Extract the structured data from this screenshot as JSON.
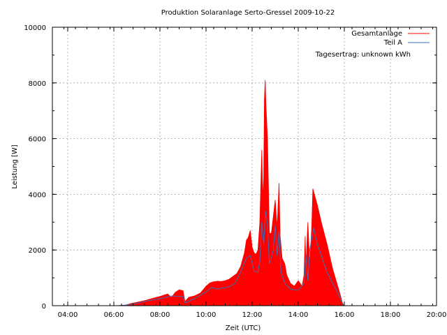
{
  "chart_data": {
    "type": "area",
    "title": "Produktion Solaranlage Serto-Gressel 2009-10-22",
    "xlabel": "Zeit (UTC)",
    "ylabel": "Leistung [W]",
    "xlim": [
      "03:20",
      "20:00"
    ],
    "ylim": [
      0,
      10000
    ],
    "x_ticks": [
      "04:00",
      "06:00",
      "08:00",
      "10:00",
      "12:00",
      "14:00",
      "16:00",
      "18:00",
      "20:00"
    ],
    "y_ticks": [
      "0",
      "2000",
      "4000",
      "6000",
      "8000",
      "10000"
    ],
    "grid": true,
    "legend_position": "top-right",
    "annotation": "Tagesertrag: unknown kWh",
    "series": [
      {
        "name": "Gesamtanlage",
        "style": "filled-area",
        "color": "#ff0000",
        "points": [
          [
            "06:10",
            0
          ],
          [
            "06:30",
            20
          ],
          [
            "06:45",
            80
          ],
          [
            "07:00",
            120
          ],
          [
            "07:20",
            180
          ],
          [
            "07:40",
            260
          ],
          [
            "08:00",
            330
          ],
          [
            "08:20",
            420
          ],
          [
            "08:30",
            300
          ],
          [
            "08:40",
            480
          ],
          [
            "08:50",
            570
          ],
          [
            "09:00",
            540
          ],
          [
            "09:05",
            150
          ],
          [
            "09:15",
            300
          ],
          [
            "09:30",
            350
          ],
          [
            "09:45",
            450
          ],
          [
            "10:00",
            700
          ],
          [
            "10:10",
            820
          ],
          [
            "10:20",
            860
          ],
          [
            "10:30",
            880
          ],
          [
            "10:40",
            870
          ],
          [
            "10:50",
            900
          ],
          [
            "11:00",
            950
          ],
          [
            "11:10",
            1050
          ],
          [
            "11:20",
            1150
          ],
          [
            "11:30",
            1400
          ],
          [
            "11:40",
            1900
          ],
          [
            "11:45",
            2350
          ],
          [
            "11:50",
            2450
          ],
          [
            "11:55",
            2700
          ],
          [
            "12:00",
            2100
          ],
          [
            "12:05",
            1900
          ],
          [
            "12:10",
            1850
          ],
          [
            "12:15",
            2000
          ],
          [
            "12:20",
            3000
          ],
          [
            "12:25",
            5600
          ],
          [
            "12:28",
            3800
          ],
          [
            "12:30",
            4500
          ],
          [
            "12:32",
            7400
          ],
          [
            "12:34",
            8100
          ],
          [
            "12:36",
            7200
          ],
          [
            "12:40",
            6000
          ],
          [
            "12:45",
            2600
          ],
          [
            "12:50",
            2600
          ],
          [
            "12:55",
            3200
          ],
          [
            "13:00",
            3800
          ],
          [
            "13:05",
            2800
          ],
          [
            "13:10",
            4400
          ],
          [
            "13:13",
            2500
          ],
          [
            "13:18",
            1700
          ],
          [
            "13:25",
            1500
          ],
          [
            "13:30",
            1100
          ],
          [
            "13:40",
            800
          ],
          [
            "13:50",
            700
          ],
          [
            "14:00",
            900
          ],
          [
            "14:10",
            700
          ],
          [
            "14:15",
            1100
          ],
          [
            "14:18",
            2500
          ],
          [
            "14:20",
            1400
          ],
          [
            "14:25",
            3000
          ],
          [
            "14:30",
            1500
          ],
          [
            "14:35",
            2800
          ],
          [
            "14:38",
            4200
          ],
          [
            "14:42",
            4000
          ],
          [
            "14:50",
            3600
          ],
          [
            "15:00",
            3000
          ],
          [
            "15:15",
            2200
          ],
          [
            "15:30",
            1300
          ],
          [
            "15:45",
            600
          ],
          [
            "15:55",
            100
          ],
          [
            "16:00",
            0
          ]
        ]
      },
      {
        "name": "Teil A",
        "style": "line",
        "color": "#3b6fb6",
        "points": [
          [
            "06:10",
            0
          ],
          [
            "06:30",
            20
          ],
          [
            "07:00",
            90
          ],
          [
            "07:30",
            180
          ],
          [
            "08:00",
            250
          ],
          [
            "08:30",
            350
          ],
          [
            "09:00",
            330
          ],
          [
            "09:05",
            100
          ],
          [
            "09:30",
            250
          ],
          [
            "10:00",
            500
          ],
          [
            "10:15",
            650
          ],
          [
            "10:30",
            600
          ],
          [
            "11:00",
            680
          ],
          [
            "11:15",
            800
          ],
          [
            "11:30",
            1200
          ],
          [
            "11:45",
            1700
          ],
          [
            "11:55",
            1800
          ],
          [
            "12:05",
            1250
          ],
          [
            "12:15",
            1200
          ],
          [
            "12:20",
            1600
          ],
          [
            "12:25",
            3000
          ],
          [
            "12:30",
            2200
          ],
          [
            "12:35",
            3400
          ],
          [
            "12:40",
            2900
          ],
          [
            "12:45",
            1500
          ],
          [
            "12:55",
            2000
          ],
          [
            "13:00",
            2900
          ],
          [
            "13:05",
            1800
          ],
          [
            "13:10",
            2700
          ],
          [
            "13:15",
            1200
          ],
          [
            "13:25",
            800
          ],
          [
            "13:40",
            600
          ],
          [
            "14:00",
            550
          ],
          [
            "14:15",
            800
          ],
          [
            "14:20",
            1800
          ],
          [
            "14:25",
            900
          ],
          [
            "14:30",
            2000
          ],
          [
            "14:40",
            2800
          ],
          [
            "14:50",
            2200
          ],
          [
            "15:00",
            1800
          ],
          [
            "15:15",
            1200
          ],
          [
            "15:30",
            800
          ],
          [
            "15:45",
            400
          ],
          [
            "15:55",
            80
          ],
          [
            "16:00",
            0
          ]
        ]
      }
    ]
  }
}
